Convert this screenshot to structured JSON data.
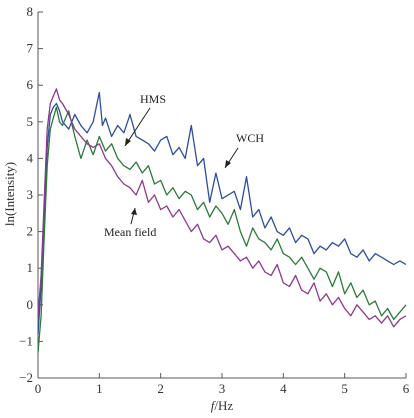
{
  "chart_data": {
    "type": "line",
    "xlabel_italic": "f",
    "xlabel_rest": "/Hz",
    "ylabel": "ln(Intensity)",
    "xlim": [
      0,
      6
    ],
    "ylim": [
      -2,
      8
    ],
    "xticks": [
      "0",
      "1",
      "2",
      "3",
      "4",
      "5",
      "6"
    ],
    "yticks": [
      "−2",
      "−1",
      "0",
      "1",
      "2",
      "3",
      "4",
      "5",
      "6",
      "7",
      "8"
    ],
    "grid": false,
    "series": [
      {
        "name": "WCH",
        "color": "#2e4d9e",
        "x": [
          0,
          0.05,
          0.1,
          0.15,
          0.2,
          0.25,
          0.3,
          0.35,
          0.4,
          0.5,
          0.6,
          0.7,
          0.8,
          0.9,
          1.0,
          1.05,
          1.1,
          1.2,
          1.3,
          1.4,
          1.5,
          1.6,
          1.7,
          1.8,
          1.9,
          2.0,
          2.1,
          2.2,
          2.3,
          2.4,
          2.5,
          2.6,
          2.7,
          2.8,
          2.9,
          3.0,
          3.1,
          3.2,
          3.3,
          3.4,
          3.5,
          3.6,
          3.7,
          3.8,
          3.9,
          4.0,
          4.1,
          4.2,
          4.3,
          4.4,
          4.5,
          4.6,
          4.7,
          4.8,
          4.9,
          5.0,
          5.1,
          5.2,
          5.3,
          5.4,
          5.5,
          5.6,
          5.7,
          5.8,
          5.9,
          6.0
        ],
        "values": [
          -0.8,
          0.5,
          2.5,
          4.3,
          5.2,
          5.4,
          5.5,
          5.3,
          5.0,
          4.8,
          5.2,
          4.9,
          4.7,
          5.0,
          5.8,
          4.9,
          5.1,
          4.6,
          4.9,
          4.7,
          5.2,
          4.6,
          4.5,
          4.4,
          4.2,
          4.5,
          4.6,
          4.1,
          4.3,
          4.0,
          4.9,
          3.8,
          4.0,
          2.8,
          3.6,
          2.9,
          3.0,
          3.1,
          2.6,
          3.5,
          2.4,
          2.6,
          2.1,
          2.4,
          2.0,
          1.9,
          2.1,
          1.7,
          1.9,
          1.8,
          1.4,
          1.6,
          1.5,
          1.7,
          1.6,
          1.8,
          1.4,
          1.3,
          1.5,
          1.2,
          1.4,
          1.3,
          1.2,
          1.1,
          1.2,
          1.1
        ]
      },
      {
        "name": "HMS",
        "color": "#2d7a3a",
        "x": [
          0,
          0.05,
          0.1,
          0.15,
          0.2,
          0.25,
          0.3,
          0.35,
          0.4,
          0.5,
          0.6,
          0.7,
          0.8,
          0.9,
          1.0,
          1.1,
          1.2,
          1.3,
          1.4,
          1.5,
          1.6,
          1.7,
          1.8,
          1.9,
          2.0,
          2.1,
          2.2,
          2.3,
          2.4,
          2.5,
          2.6,
          2.7,
          2.8,
          2.9,
          3.0,
          3.1,
          3.2,
          3.3,
          3.4,
          3.5,
          3.6,
          3.7,
          3.8,
          3.9,
          4.0,
          4.1,
          4.2,
          4.3,
          4.4,
          4.5,
          4.6,
          4.7,
          4.8,
          4.9,
          5.0,
          5.1,
          5.2,
          5.3,
          5.4,
          5.5,
          5.6,
          5.7,
          5.8,
          5.9,
          6.0
        ],
        "values": [
          -1.3,
          -0.3,
          1.8,
          3.8,
          4.8,
          5.1,
          5.4,
          5.0,
          4.9,
          5.3,
          4.6,
          4.0,
          4.5,
          4.1,
          4.6,
          4.2,
          4.4,
          4.0,
          3.8,
          3.7,
          3.9,
          3.6,
          3.8,
          3.3,
          3.4,
          3.0,
          3.2,
          2.9,
          3.1,
          3.0,
          2.6,
          2.8,
          2.4,
          2.7,
          2.5,
          2.2,
          2.6,
          2.0,
          1.6,
          2.1,
          1.8,
          1.7,
          1.5,
          1.8,
          1.4,
          1.3,
          1.1,
          1.3,
          1.0,
          0.7,
          1.0,
          0.9,
          0.5,
          0.9,
          0.3,
          0.6,
          0.2,
          0.4,
          0.0,
          0.1,
          -0.3,
          -0.1,
          -0.4,
          -0.2,
          0.0
        ]
      },
      {
        "name": "Mean field",
        "color": "#8b3a8f",
        "x": [
          0,
          0.05,
          0.1,
          0.15,
          0.2,
          0.25,
          0.3,
          0.35,
          0.4,
          0.5,
          0.6,
          0.7,
          0.8,
          0.9,
          1.0,
          1.1,
          1.2,
          1.3,
          1.4,
          1.5,
          1.6,
          1.7,
          1.8,
          1.9,
          2.0,
          2.1,
          2.2,
          2.3,
          2.4,
          2.5,
          2.6,
          2.7,
          2.8,
          2.9,
          3.0,
          3.1,
          3.2,
          3.3,
          3.4,
          3.5,
          3.6,
          3.7,
          3.8,
          3.9,
          4.0,
          4.1,
          4.2,
          4.3,
          4.4,
          4.5,
          4.6,
          4.7,
          4.8,
          4.9,
          5.0,
          5.1,
          5.2,
          5.3,
          5.4,
          5.5,
          5.6,
          5.7,
          5.8,
          5.9,
          6.0
        ],
        "values": [
          -0.3,
          0.8,
          2.8,
          4.8,
          5.5,
          5.7,
          5.9,
          5.6,
          5.5,
          5.2,
          4.8,
          4.6,
          4.4,
          4.3,
          4.4,
          4.0,
          3.8,
          3.5,
          3.3,
          3.2,
          3.0,
          3.4,
          2.8,
          3.0,
          2.6,
          2.7,
          2.4,
          2.6,
          2.3,
          2.0,
          2.2,
          1.8,
          1.7,
          1.9,
          1.5,
          1.6,
          1.4,
          1.2,
          1.3,
          1.0,
          1.2,
          0.9,
          0.8,
          1.1,
          0.6,
          0.5,
          0.8,
          0.4,
          0.3,
          0.6,
          0.1,
          0.3,
          0.0,
          0.2,
          -0.1,
          -0.3,
          0.0,
          -0.2,
          -0.4,
          -0.3,
          -0.5,
          -0.3,
          -0.6,
          -0.4,
          -0.3
        ]
      }
    ],
    "annotations": [
      {
        "text": "HMS"
      },
      {
        "text": "WCH"
      },
      {
        "text": "Mean field"
      }
    ]
  }
}
